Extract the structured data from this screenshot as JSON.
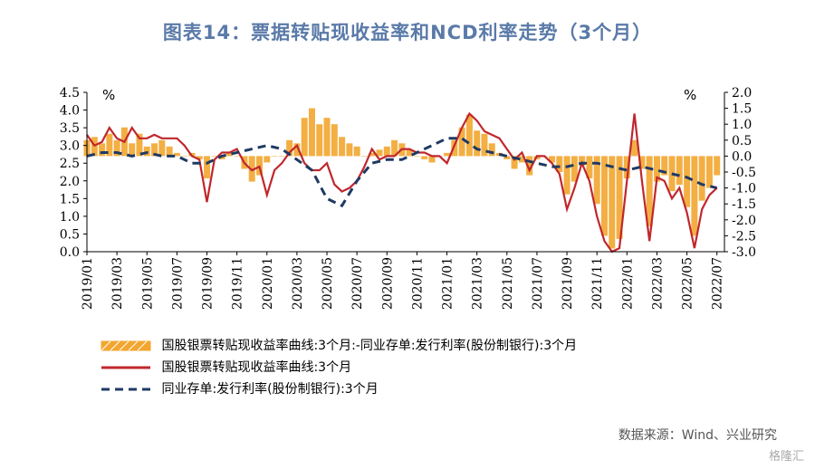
{
  "title": "图表14：票据转贴现收益率和NCD利率走势（3个月）",
  "chart_data": {
    "type": "line",
    "left_axis": {
      "unit": "%",
      "ylim": [
        0.0,
        4.5
      ],
      "ticks": [
        "0.0",
        "0.5",
        "1.0",
        "1.5",
        "2.0",
        "2.5",
        "3.0",
        "3.5",
        "4.0",
        "4.5"
      ]
    },
    "right_axis": {
      "unit": "%",
      "ylim": [
        -3.0,
        2.0
      ],
      "ticks": [
        "-3.0",
        "-2.5",
        "-2.0",
        "-1.5",
        "-1.0",
        "-0.5",
        "0.0",
        "0.5",
        "1.0",
        "1.5",
        "2.0"
      ]
    },
    "x_ticks": [
      "2019/01",
      "2019/03",
      "2019/05",
      "2019/07",
      "2019/09",
      "2019/11",
      "2020/01",
      "2020/03",
      "2020/05",
      "2020/07",
      "2020/09",
      "2020/11",
      "2021/01",
      "2021/03",
      "2021/05",
      "2021/07",
      "2021/09",
      "2021/11",
      "2022/01",
      "2022/03",
      "2022/05",
      "2022/07"
    ],
    "x_range_months": [
      0,
      42.5
    ],
    "series": [
      {
        "name": "国股银票转贴现收益率曲线:3个月:-同业存单:发行利率(股份制银行):3个月",
        "axis": "right",
        "style": "bar",
        "color": "#f2a62f",
        "points": [
          [
            0,
            0.5
          ],
          [
            0.5,
            0.6
          ],
          [
            1,
            0.4
          ],
          [
            1.5,
            0.7
          ],
          [
            2,
            0.5
          ],
          [
            2.5,
            0.9
          ],
          [
            3,
            0.4
          ],
          [
            3.5,
            0.7
          ],
          [
            4,
            0.3
          ],
          [
            4.5,
            0.4
          ],
          [
            5,
            0.5
          ],
          [
            5.5,
            0.3
          ],
          [
            6,
            0.1
          ],
          [
            6.5,
            0.0
          ],
          [
            7,
            0.1
          ],
          [
            7.5,
            -0.1
          ],
          [
            8,
            -0.7
          ],
          [
            8.5,
            0.0
          ],
          [
            9,
            -0.1
          ],
          [
            9.5,
            0.1
          ],
          [
            10,
            0.0
          ],
          [
            10.5,
            -0.4
          ],
          [
            11,
            -0.8
          ],
          [
            11.5,
            -0.6
          ],
          [
            12,
            -0.2
          ],
          [
            12.5,
            0.0
          ],
          [
            13,
            0.0
          ],
          [
            13.5,
            0.5
          ],
          [
            14,
            0.4
          ],
          [
            14.5,
            1.2
          ],
          [
            15,
            1.5
          ],
          [
            15.5,
            1.0
          ],
          [
            16,
            1.2
          ],
          [
            16.5,
            1.0
          ],
          [
            17,
            0.6
          ],
          [
            17.5,
            0.4
          ],
          [
            18,
            0.3
          ],
          [
            18.5,
            0.0
          ],
          [
            19,
            0.1
          ],
          [
            19.5,
            0.2
          ],
          [
            20,
            0.3
          ],
          [
            20.5,
            0.5
          ],
          [
            21,
            0.4
          ],
          [
            21.5,
            0.2
          ],
          [
            22,
            0.0
          ],
          [
            22.5,
            -0.1
          ],
          [
            23,
            -0.2
          ],
          [
            23.5,
            0.0
          ],
          [
            24,
            0.1
          ],
          [
            24.5,
            0.5
          ],
          [
            25,
            0.9
          ],
          [
            25.5,
            1.3
          ],
          [
            26,
            0.8
          ],
          [
            26.5,
            0.7
          ],
          [
            27,
            0.4
          ],
          [
            27.5,
            0.1
          ],
          [
            28,
            -0.1
          ],
          [
            28.5,
            -0.4
          ],
          [
            29,
            -0.2
          ],
          [
            29.5,
            -0.6
          ],
          [
            30,
            -0.1
          ],
          [
            30.5,
            0.0
          ],
          [
            31,
            -0.2
          ],
          [
            31.5,
            -0.5
          ],
          [
            32,
            -1.2
          ],
          [
            32.5,
            -0.8
          ],
          [
            33,
            -0.3
          ],
          [
            33.5,
            -0.7
          ],
          [
            34,
            -1.5
          ],
          [
            34.5,
            -2.5
          ],
          [
            35,
            -2.9
          ],
          [
            35.5,
            -2.6
          ],
          [
            36,
            -0.7
          ],
          [
            36.5,
            0.5
          ],
          [
            37,
            -0.4
          ],
          [
            37.5,
            -2.2
          ],
          [
            38,
            -0.8
          ],
          [
            38.5,
            -0.6
          ],
          [
            39,
            -1.1
          ],
          [
            39.5,
            -0.9
          ],
          [
            40,
            -1.6
          ],
          [
            40.5,
            -2.5
          ],
          [
            41,
            -1.4
          ],
          [
            41.5,
            -1.0
          ],
          [
            42,
            -0.6
          ]
        ]
      },
      {
        "name": "国股银票转贴现收益率曲线:3个月",
        "axis": "left",
        "style": "line",
        "color": "#c0272d",
        "points": [
          [
            0,
            3.3
          ],
          [
            0.5,
            3.0
          ],
          [
            1,
            3.1
          ],
          [
            1.5,
            3.5
          ],
          [
            2,
            3.2
          ],
          [
            2.5,
            3.1
          ],
          [
            3,
            3.5
          ],
          [
            3.5,
            3.2
          ],
          [
            4,
            3.2
          ],
          [
            4.5,
            3.3
          ],
          [
            5,
            3.2
          ],
          [
            5.5,
            3.2
          ],
          [
            6,
            3.2
          ],
          [
            6.5,
            3.0
          ],
          [
            7,
            2.7
          ],
          [
            7.5,
            2.6
          ],
          [
            8,
            1.4
          ],
          [
            8.5,
            2.6
          ],
          [
            9,
            2.8
          ],
          [
            9.5,
            2.8
          ],
          [
            10,
            2.9
          ],
          [
            10.5,
            2.5
          ],
          [
            11,
            2.3
          ],
          [
            11.5,
            2.4
          ],
          [
            12,
            1.6
          ],
          [
            12.5,
            2.3
          ],
          [
            13,
            2.5
          ],
          [
            13.5,
            2.8
          ],
          [
            14,
            3.0
          ],
          [
            14.5,
            2.5
          ],
          [
            15,
            2.3
          ],
          [
            15.5,
            2.3
          ],
          [
            16,
            2.5
          ],
          [
            16.5,
            1.9
          ],
          [
            17,
            1.7
          ],
          [
            17.5,
            1.8
          ],
          [
            18,
            2.0
          ],
          [
            18.5,
            2.4
          ],
          [
            19,
            2.9
          ],
          [
            19.5,
            2.6
          ],
          [
            20,
            2.7
          ],
          [
            20.5,
            2.7
          ],
          [
            21,
            2.9
          ],
          [
            21.5,
            2.9
          ],
          [
            22,
            2.8
          ],
          [
            22.5,
            2.8
          ],
          [
            23,
            2.7
          ],
          [
            23.5,
            2.7
          ],
          [
            24,
            2.5
          ],
          [
            24.5,
            3.0
          ],
          [
            25,
            3.5
          ],
          [
            25.5,
            3.9
          ],
          [
            26,
            3.7
          ],
          [
            26.5,
            3.4
          ],
          [
            27,
            3.3
          ],
          [
            27.5,
            3.2
          ],
          [
            28,
            2.9
          ],
          [
            28.5,
            2.6
          ],
          [
            29,
            2.8
          ],
          [
            29.5,
            2.3
          ],
          [
            30,
            2.7
          ],
          [
            30.5,
            2.7
          ],
          [
            31,
            2.5
          ],
          [
            31.5,
            2.2
          ],
          [
            32,
            1.2
          ],
          [
            32.5,
            1.8
          ],
          [
            33,
            2.5
          ],
          [
            33.5,
            2.0
          ],
          [
            34,
            1.0
          ],
          [
            34.5,
            0.3
          ],
          [
            35,
            0.0
          ],
          [
            35.5,
            0.1
          ],
          [
            36,
            2.0
          ],
          [
            36.5,
            3.9
          ],
          [
            37,
            2.0
          ],
          [
            37.5,
            0.3
          ],
          [
            38,
            2.1
          ],
          [
            38.5,
            2.0
          ],
          [
            39,
            1.5
          ],
          [
            39.5,
            1.8
          ],
          [
            40,
            1.1
          ],
          [
            40.5,
            0.1
          ],
          [
            41,
            1.2
          ],
          [
            41.5,
            1.6
          ],
          [
            42,
            1.8
          ]
        ]
      },
      {
        "name": "同业存单:发行利率(股份制银行):3个月",
        "axis": "left",
        "style": "dashed",
        "color": "#1f3a64",
        "points": [
          [
            0,
            2.7
          ],
          [
            1,
            2.8
          ],
          [
            2,
            2.8
          ],
          [
            3,
            2.7
          ],
          [
            4,
            2.8
          ],
          [
            5,
            2.7
          ],
          [
            6,
            2.7
          ],
          [
            7,
            2.5
          ],
          [
            8,
            2.5
          ],
          [
            9,
            2.7
          ],
          [
            10,
            2.8
          ],
          [
            11,
            2.9
          ],
          [
            12,
            3.0
          ],
          [
            13,
            2.9
          ],
          [
            14,
            2.6
          ],
          [
            15,
            2.3
          ],
          [
            16,
            1.5
          ],
          [
            17,
            1.3
          ],
          [
            18,
            2.0
          ],
          [
            19,
            2.5
          ],
          [
            20,
            2.6
          ],
          [
            21,
            2.6
          ],
          [
            22,
            2.8
          ],
          [
            23,
            3.0
          ],
          [
            24,
            3.2
          ],
          [
            25,
            3.2
          ],
          [
            26,
            2.9
          ],
          [
            27,
            2.8
          ],
          [
            28,
            2.7
          ],
          [
            29,
            2.6
          ],
          [
            30,
            2.5
          ],
          [
            31,
            2.4
          ],
          [
            32,
            2.4
          ],
          [
            33,
            2.5
          ],
          [
            34,
            2.5
          ],
          [
            35,
            2.4
          ],
          [
            36,
            2.3
          ],
          [
            37,
            2.4
          ],
          [
            38,
            2.3
          ],
          [
            39,
            2.2
          ],
          [
            40,
            2.1
          ],
          [
            41,
            1.9
          ],
          [
            42,
            1.8
          ]
        ]
      }
    ],
    "legend_position": "bottom-left"
  },
  "source": "数据来源：Wind、兴业研究",
  "watermark": "格隆汇"
}
